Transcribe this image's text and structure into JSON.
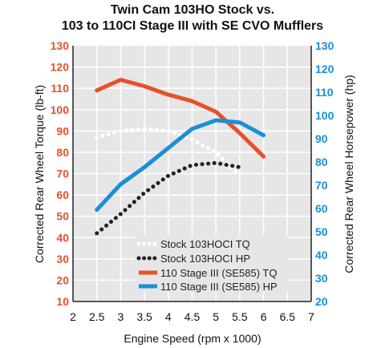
{
  "chart_data": {
    "type": "line",
    "title_lines": [
      "Twin Cam 103HO Stock vs.",
      "103 to 110CI Stage III with SE CVO Mufflers"
    ],
    "xlabel": "Engine Speed (rpm x 1000)",
    "ylabel_left": "Corrected Rear Wheel Torque (lb-ft)",
    "ylabel_right": "Corrected Rear Wheel Horsepower (hp)",
    "xlim": [
      2,
      7
    ],
    "ylim": [
      10,
      130
    ],
    "ylim_right": [
      20,
      130
    ],
    "x_ticks": [
      "2",
      "2.5",
      "3",
      "3.5",
      "4",
      "4.5",
      "5",
      "5.5",
      "6",
      "6.5",
      "7"
    ],
    "y_ticks_left": [
      "10",
      "20",
      "30",
      "40",
      "50",
      "60",
      "70",
      "80",
      "90",
      "100",
      "110",
      "120",
      "130"
    ],
    "y_ticks_right": [
      "20",
      "30",
      "40",
      "50",
      "60",
      "70",
      "80",
      "90",
      "100",
      "110",
      "120",
      "130"
    ],
    "legend_position": "bottom-center",
    "grid": true,
    "colors": {
      "left_axis": "#e8502a",
      "right_axis": "#1a8fd6",
      "plot_bg": "#e6e6e6",
      "grid": "#ffffff",
      "stock_hp": "#222222"
    },
    "series": [
      {
        "name": "Stock 103HOCI TQ",
        "axis": "left",
        "color": "#ffffff",
        "style": "dotted",
        "x": [
          2.5,
          3.0,
          3.5,
          4.0,
          4.5,
          5.0,
          5.5
        ],
        "y": [
          87,
          90,
          91,
          90,
          86,
          80,
          69
        ]
      },
      {
        "name": "Stock 103HOCI HP",
        "axis": "left",
        "color": "#222222",
        "style": "dotted",
        "x": [
          2.5,
          3.0,
          3.5,
          4.0,
          4.5,
          5.0,
          5.5
        ],
        "y": [
          42,
          51,
          61,
          69,
          74,
          75,
          73
        ]
      },
      {
        "name": "110 Stage III (SE585) TQ",
        "axis": "left",
        "color": "#e8502a",
        "style": "solid",
        "x": [
          2.5,
          3.0,
          3.5,
          4.0,
          4.5,
          5.0,
          5.5,
          6.0
        ],
        "y": [
          109,
          114,
          111,
          107,
          104,
          99,
          89,
          78
        ]
      },
      {
        "name": "110 Stage III (SE585) HP",
        "axis": "left",
        "color": "#1a8fd6",
        "style": "solid",
        "x": [
          2.5,
          3.0,
          3.5,
          4.0,
          4.5,
          5.0,
          5.5,
          6.0
        ],
        "y": [
          53,
          65,
          73,
          82,
          91,
          95,
          94,
          88
        ]
      }
    ]
  }
}
